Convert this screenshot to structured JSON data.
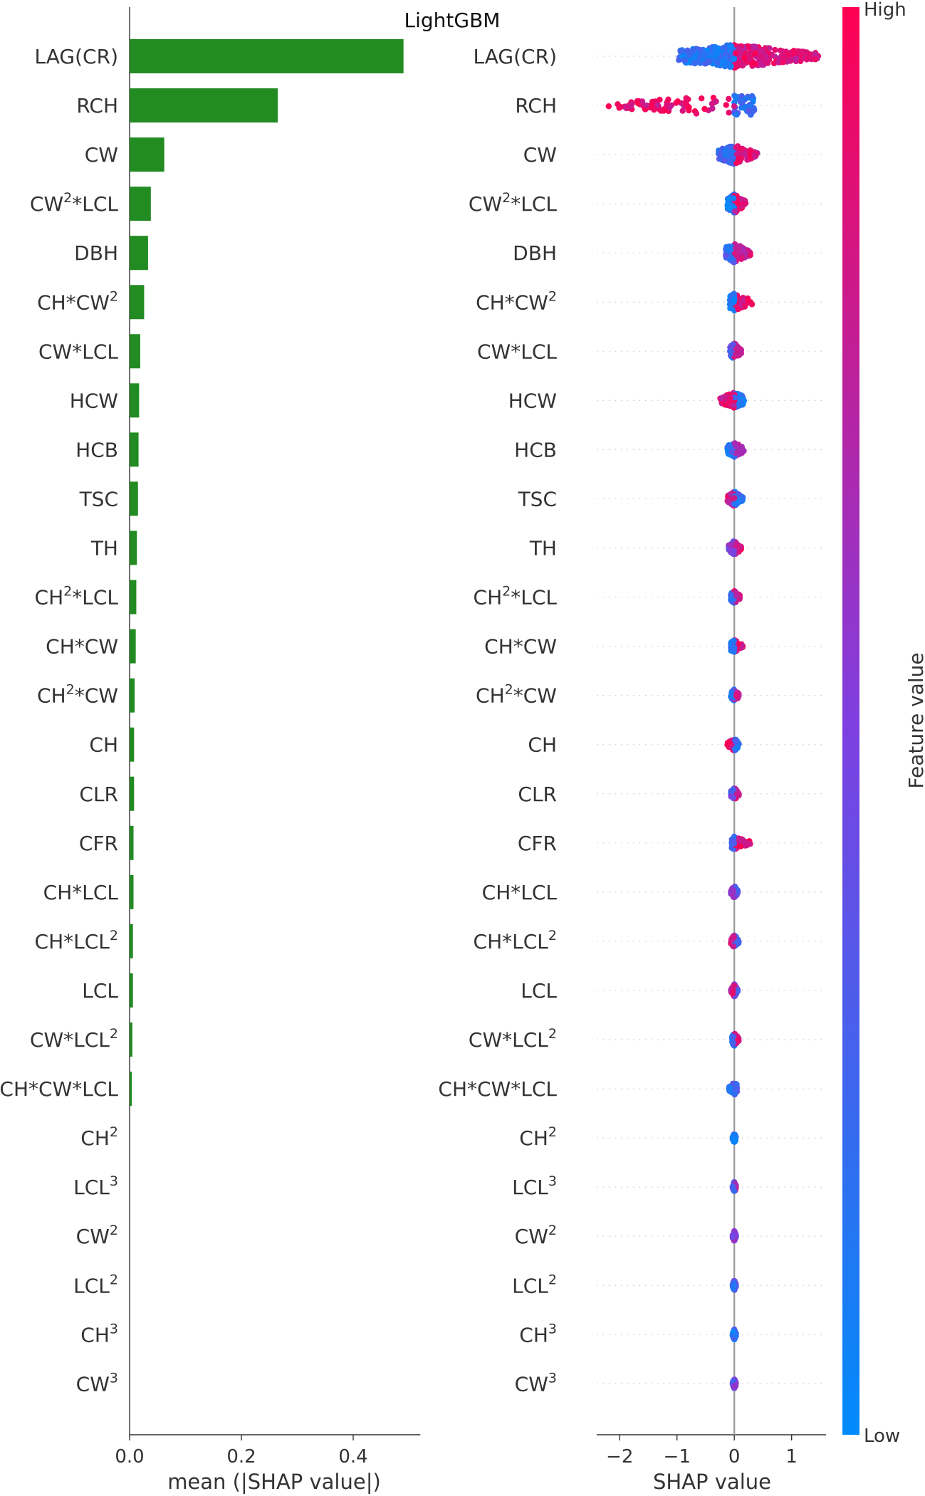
{
  "title": "LightGBM",
  "chart_data": [
    {
      "type": "bar",
      "orientation": "horizontal",
      "xlabel": "mean (|SHAP value|)",
      "xlim": [
        0,
        0.52
      ],
      "xticks": [
        "0.0",
        "0.2",
        "0.4"
      ],
      "xtick_values": [
        0.0,
        0.2,
        0.4
      ],
      "bar_color": "#228B22",
      "categories": [
        "LAG(CR)",
        "RCH",
        "CW",
        "CW²*LCL",
        "DBH",
        "CH*CW²",
        "CW*LCL",
        "HCW",
        "HCB",
        "TSC",
        "TH",
        "CH²*LCL",
        "CH*CW",
        "CH²*CW",
        "CH",
        "CLR",
        "CFR",
        "CH*LCL",
        "CH*LCL²",
        "LCL",
        "CW*LCL²",
        "CH*CW*LCL",
        "CH²",
        "LCL³",
        "CW²",
        "LCL²",
        "CH³",
        "CW³"
      ],
      "values": [
        0.49,
        0.265,
        0.062,
        0.038,
        0.033,
        0.026,
        0.019,
        0.017,
        0.016,
        0.015,
        0.013,
        0.012,
        0.011,
        0.009,
        0.008,
        0.008,
        0.007,
        0.007,
        0.006,
        0.006,
        0.005,
        0.004,
        0.0,
        0.0,
        0.0,
        0.0,
        0.0,
        0.0
      ]
    },
    {
      "type": "scatter",
      "subtype": "beeswarm",
      "xlabel": "SHAP value",
      "xlim": [
        -2.4,
        1.6
      ],
      "xticks": [
        "−2",
        "−1",
        "0",
        "1"
      ],
      "xtick_values": [
        -2,
        -1,
        0,
        1
      ],
      "colorbar": {
        "label": "Feature value",
        "high_label": "High",
        "low_label": "Low",
        "high_color": "#ff0052",
        "mid_color": "#7f3fe0",
        "low_color": "#008bfb"
      },
      "zero_line_color": "#999999",
      "features": [
        {
          "name": "LAG(CR)",
          "neg_min": -0.98,
          "pos_max": 1.48,
          "spread": 0.55,
          "density": 420,
          "neg_hue": 0.15,
          "pos_hue": 0.85
        },
        {
          "name": "RCH",
          "neg_min": -2.2,
          "pos_max": 0.35,
          "spread": 0.5,
          "density": 130,
          "neg_hue": 0.9,
          "pos_hue": 0.2,
          "outlier_band": [
            -2.2,
            -0.75
          ]
        },
        {
          "name": "CW",
          "neg_min": -0.28,
          "pos_max": 0.4,
          "spread": 0.45,
          "density": 120,
          "neg_hue": 0.2,
          "pos_hue": 0.85
        },
        {
          "name": "CW²*LCL",
          "neg_min": -0.12,
          "pos_max": 0.2,
          "spread": 0.45,
          "density": 110,
          "neg_hue": 0.15,
          "pos_hue": 0.85
        },
        {
          "name": "DBH",
          "neg_min": -0.15,
          "pos_max": 0.28,
          "spread": 0.45,
          "density": 110,
          "neg_hue": 0.25,
          "pos_hue": 0.8
        },
        {
          "name": "CH*CW²",
          "neg_min": -0.08,
          "pos_max": 0.32,
          "spread": 0.4,
          "density": 100,
          "neg_hue": 0.15,
          "pos_hue": 0.9
        },
        {
          "name": "CW*LCL",
          "neg_min": -0.08,
          "pos_max": 0.12,
          "spread": 0.4,
          "density": 100,
          "neg_hue": 0.3,
          "pos_hue": 0.8
        },
        {
          "name": "HCW",
          "neg_min": -0.25,
          "pos_max": 0.18,
          "spread": 0.4,
          "density": 100,
          "neg_hue": 0.85,
          "pos_hue": 0.15
        },
        {
          "name": "HCB",
          "neg_min": -0.12,
          "pos_max": 0.18,
          "spread": 0.35,
          "density": 100,
          "neg_hue": 0.2,
          "pos_hue": 0.7
        },
        {
          "name": "TSC",
          "neg_min": -0.12,
          "pos_max": 0.15,
          "spread": 0.35,
          "density": 100,
          "neg_hue": 0.8,
          "pos_hue": 0.2
        },
        {
          "name": "TH",
          "neg_min": -0.1,
          "pos_max": 0.12,
          "spread": 0.35,
          "density": 90,
          "neg_hue": 0.5,
          "pos_hue": 0.85
        },
        {
          "name": "CH²*LCL",
          "neg_min": -0.06,
          "pos_max": 0.1,
          "spread": 0.3,
          "density": 90,
          "neg_hue": 0.2,
          "pos_hue": 0.8
        },
        {
          "name": "CH*CW",
          "neg_min": -0.06,
          "pos_max": 0.15,
          "spread": 0.3,
          "density": 90,
          "neg_hue": 0.15,
          "pos_hue": 0.85
        },
        {
          "name": "CH²*CW",
          "neg_min": -0.06,
          "pos_max": 0.08,
          "spread": 0.3,
          "density": 90,
          "neg_hue": 0.2,
          "pos_hue": 0.75
        },
        {
          "name": "CH",
          "neg_min": -0.12,
          "pos_max": 0.08,
          "spread": 0.3,
          "density": 90,
          "neg_hue": 0.85,
          "pos_hue": 0.2
        },
        {
          "name": "CLR",
          "neg_min": -0.06,
          "pos_max": 0.08,
          "spread": 0.3,
          "density": 90,
          "neg_hue": 0.4,
          "pos_hue": 0.8
        },
        {
          "name": "CFR",
          "neg_min": -0.05,
          "pos_max": 0.28,
          "spread": 0.3,
          "density": 90,
          "neg_hue": 0.2,
          "pos_hue": 0.9
        },
        {
          "name": "CH*LCL",
          "neg_min": -0.06,
          "pos_max": 0.06,
          "spread": 0.3,
          "density": 80,
          "neg_hue": 0.6,
          "pos_hue": 0.3
        },
        {
          "name": "CH*LCL²",
          "neg_min": -0.06,
          "pos_max": 0.08,
          "spread": 0.3,
          "density": 80,
          "neg_hue": 0.8,
          "pos_hue": 0.3
        },
        {
          "name": "LCL",
          "neg_min": -0.06,
          "pos_max": 0.06,
          "spread": 0.3,
          "density": 80,
          "neg_hue": 0.8,
          "pos_hue": 0.4
        },
        {
          "name": "CW*LCL²",
          "neg_min": -0.04,
          "pos_max": 0.08,
          "spread": 0.3,
          "density": 80,
          "neg_hue": 0.2,
          "pos_hue": 0.85
        },
        {
          "name": "CH*CW*LCL",
          "neg_min": -0.1,
          "pos_max": 0.05,
          "spread": 0.3,
          "density": 80,
          "neg_hue": 0.2,
          "pos_hue": 0.3
        },
        {
          "name": "CH²",
          "neg_min": -0.03,
          "pos_max": 0.03,
          "spread": 0.25,
          "density": 70,
          "neg_hue": 0.15,
          "pos_hue": 0.15
        },
        {
          "name": "LCL³",
          "neg_min": -0.03,
          "pos_max": 0.03,
          "spread": 0.25,
          "density": 70,
          "neg_hue": 0.3,
          "pos_hue": 0.7
        },
        {
          "name": "CW²",
          "neg_min": -0.03,
          "pos_max": 0.03,
          "spread": 0.25,
          "density": 70,
          "neg_hue": 0.5,
          "pos_hue": 0.5
        },
        {
          "name": "LCL²",
          "neg_min": -0.03,
          "pos_max": 0.03,
          "spread": 0.25,
          "density": 70,
          "neg_hue": 0.25,
          "pos_hue": 0.35
        },
        {
          "name": "CH³",
          "neg_min": -0.03,
          "pos_max": 0.03,
          "spread": 0.25,
          "density": 70,
          "neg_hue": 0.15,
          "pos_hue": 0.2
        },
        {
          "name": "CW³",
          "neg_min": -0.03,
          "pos_max": 0.03,
          "spread": 0.25,
          "density": 70,
          "neg_hue": 0.4,
          "pos_hue": 0.6
        }
      ]
    }
  ]
}
